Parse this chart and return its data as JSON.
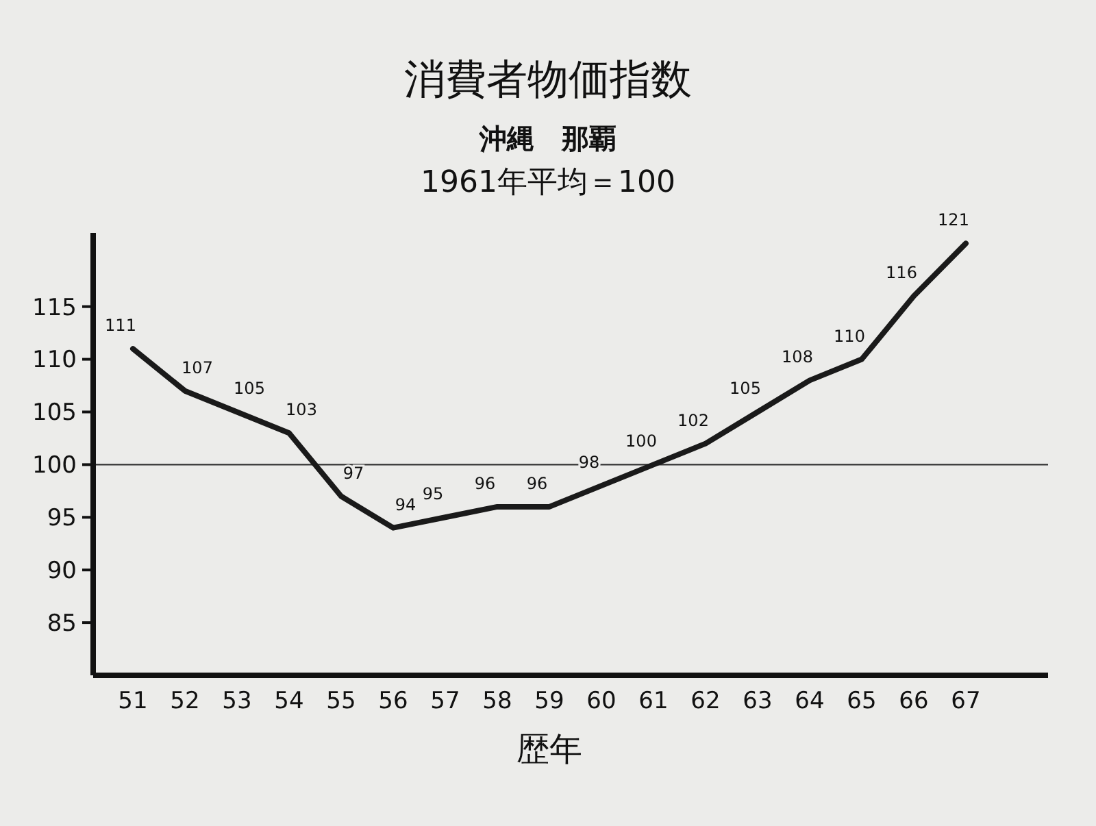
{
  "chart_data": {
    "type": "line",
    "title": "消費者物価指数",
    "subtitle": "沖縄　那覇\n1961年平均＝100",
    "xlabel": "歴年",
    "categories": [
      "51",
      "52",
      "53",
      "54",
      "55",
      "56",
      "57",
      "58",
      "59",
      "60",
      "61",
      "62",
      "63",
      "64",
      "65",
      "66",
      "67"
    ],
    "series": [
      {
        "color": "#1a1a1a",
        "values": [
          111,
          107,
          105,
          103,
          97,
          94,
          95,
          96,
          96,
          98,
          100,
          102,
          105,
          108,
          110,
          116,
          121
        ]
      }
    ],
    "ylim": [
      80,
      122
    ],
    "yticks": [
      85,
      90,
      95,
      100,
      105,
      110,
      115
    ],
    "ref_lines": [
      {
        "axis": "y",
        "value": 100,
        "color": "#333333"
      }
    ],
    "data_labels": true,
    "grid": false,
    "marker": "none",
    "line_style": "solid"
  }
}
